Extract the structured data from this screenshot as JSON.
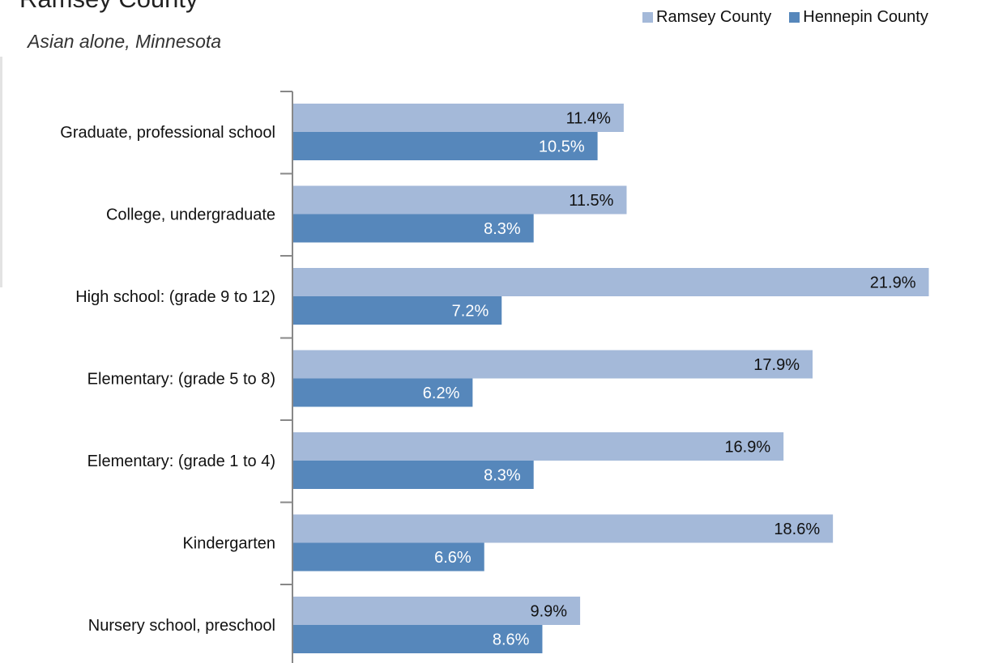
{
  "chart_data": {
    "type": "bar",
    "orientation": "horizontal",
    "title": "Ramsey County",
    "subtitle": "Asian alone, Minnesota",
    "categories": [
      "Graduate, professional school",
      "College, undergraduate",
      "High school: (grade 9 to 12)",
      "Elementary: (grade 5 to 8)",
      "Elementary: (grade 1 to 4)",
      "Kindergarten",
      "Nursery school, preschool"
    ],
    "series": [
      {
        "name": "Ramsey County",
        "color": "#a4b9d9",
        "label_color": "#111111",
        "values": [
          11.4,
          11.5,
          21.9,
          17.9,
          16.9,
          18.6,
          9.9
        ],
        "labels": [
          "11.4%",
          "11.5%",
          "21.9%",
          "17.9%",
          "16.9%",
          "18.6%",
          "9.9%"
        ]
      },
      {
        "name": "Hennepin County",
        "color": "#5687bb",
        "label_color": "#ffffff",
        "values": [
          10.5,
          8.3,
          7.2,
          6.2,
          8.3,
          6.6,
          8.6
        ],
        "labels": [
          "10.5%",
          "8.3%",
          "7.2%",
          "6.2%",
          "8.3%",
          "6.6%",
          "8.6%"
        ]
      }
    ],
    "xlim": [
      0,
      22
    ],
    "legend_position": "top-right",
    "grid": false,
    "axis_color": "#888888"
  }
}
